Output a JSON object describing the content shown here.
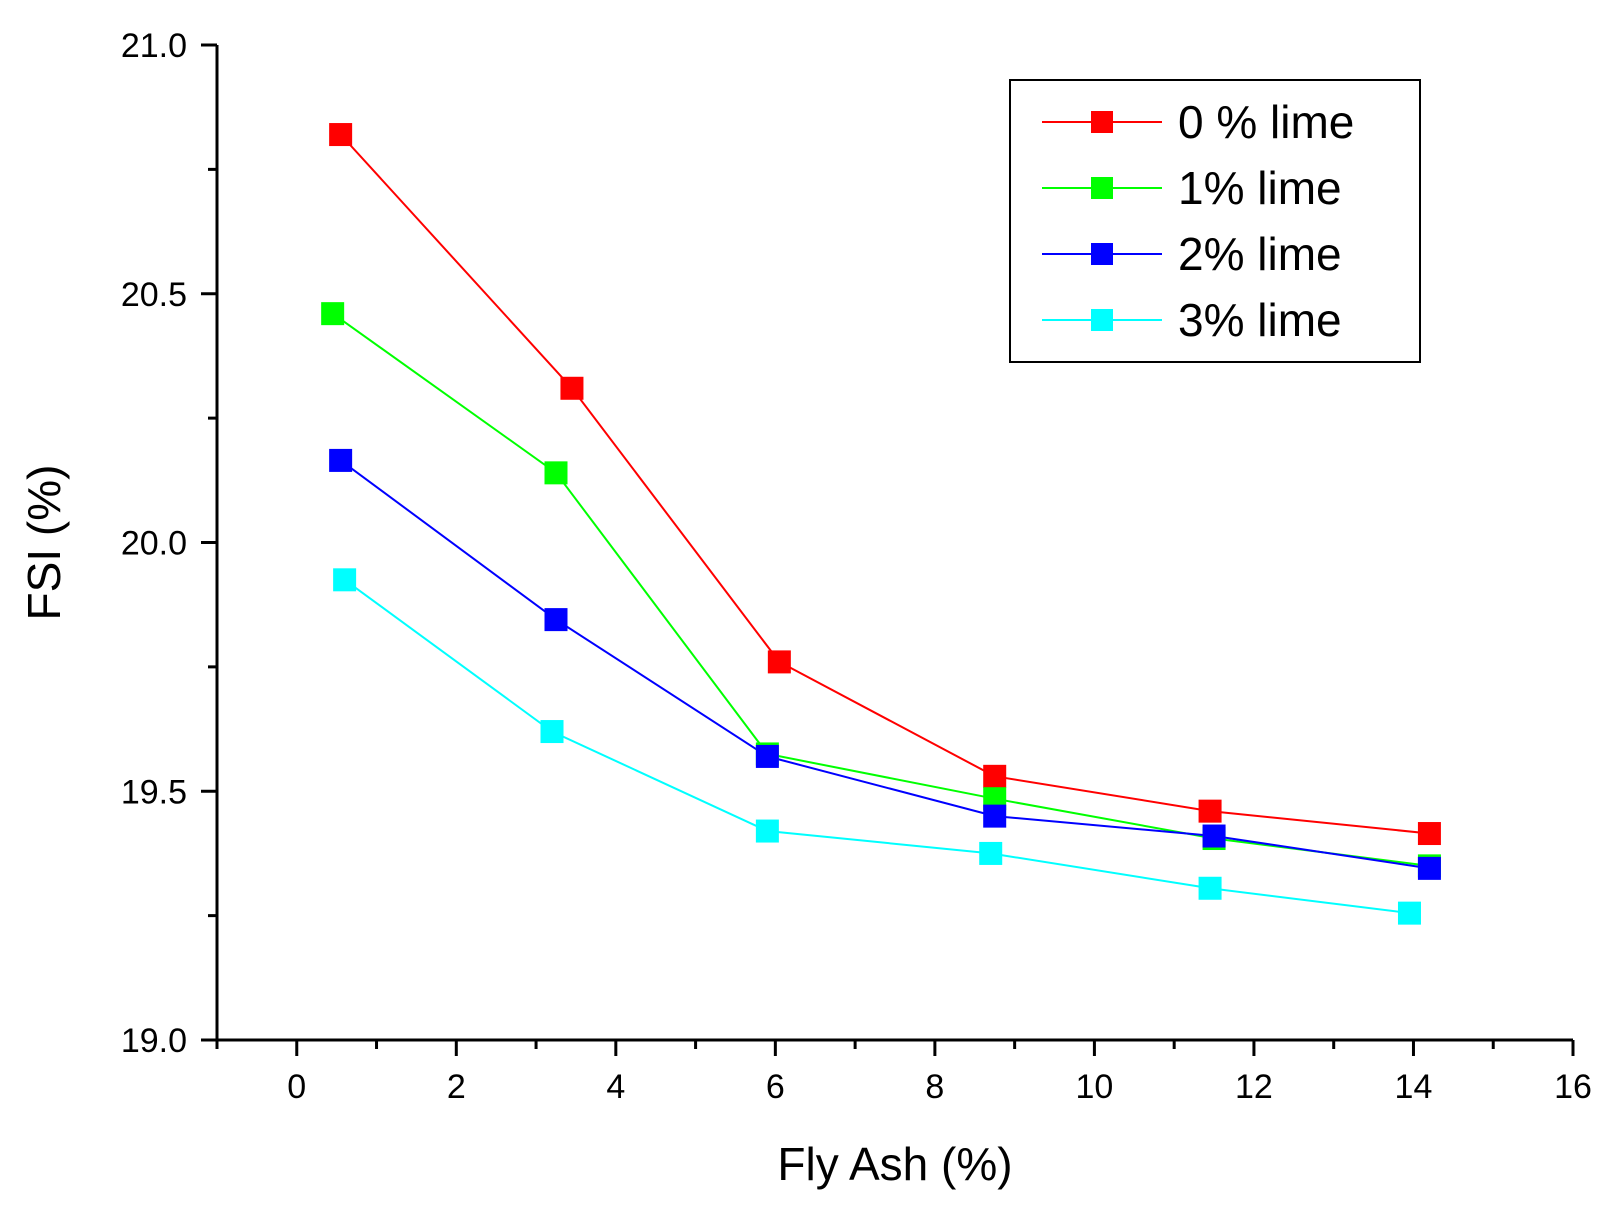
{
  "chart_data": {
    "type": "line",
    "title": "",
    "xlabel": "Fly Ash (%)",
    "ylabel": "FSI (%)",
    "xlim": [
      -1,
      16
    ],
    "ylim": [
      19.0,
      21.0
    ],
    "x_ticks": [
      0,
      2,
      4,
      6,
      8,
      10,
      12,
      14,
      16
    ],
    "x_tick_labels": [
      "0",
      "2",
      "4",
      "6",
      "8",
      "10",
      "12",
      "14",
      "16"
    ],
    "y_ticks": [
      19.0,
      19.5,
      20.0,
      20.5,
      21.0
    ],
    "y_tick_labels": [
      "19.0",
      "19.5",
      "20.0",
      "20.5",
      "21.0"
    ],
    "grid": false,
    "legend_position": "top-right",
    "marker": "square",
    "series": [
      {
        "name": "0 % lime",
        "color": "#ff0000",
        "x": [
          0.55,
          3.45,
          6.05,
          8.75,
          11.45,
          14.2
        ],
        "y": [
          20.82,
          20.31,
          19.76,
          19.53,
          19.46,
          19.415
        ]
      },
      {
        "name": "1% lime",
        "color": "#00ff00",
        "x": [
          0.45,
          3.25,
          5.9,
          8.75,
          11.5,
          14.2
        ],
        "y": [
          20.46,
          20.14,
          19.575,
          19.485,
          19.405,
          19.35
        ]
      },
      {
        "name": "2% lime",
        "color": "#0000ff",
        "x": [
          0.55,
          3.25,
          5.9,
          8.75,
          11.5,
          14.2
        ],
        "y": [
          20.165,
          19.845,
          19.57,
          19.45,
          19.41,
          19.345
        ]
      },
      {
        "name": "3% lime",
        "color": "#00ffff",
        "x": [
          0.6,
          3.2,
          5.9,
          8.7,
          11.45,
          13.95
        ],
        "y": [
          19.925,
          19.62,
          19.42,
          19.375,
          19.305,
          19.255
        ]
      }
    ]
  }
}
